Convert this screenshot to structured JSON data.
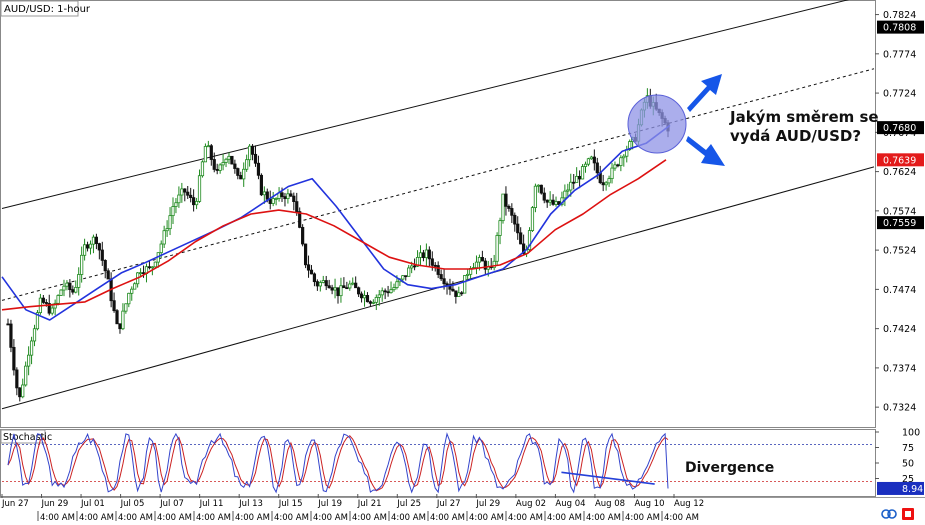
{
  "header": {
    "title": "AUD/USD: 1-hour"
  },
  "annotation": {
    "question": [
      "Jakým směrem se",
      "vydá AUD/USD?"
    ],
    "divergence": "Divergence"
  },
  "colors": {
    "up_candle": "#1f8a1f",
    "down_candle": "#111111",
    "ma_blue": "#2233dd",
    "ma_red": "#dd1111",
    "stoch_main": "#3344cc",
    "stoch_signal": "#cc2222",
    "highlight_fill": "#8f93e6",
    "arrow": "#1656e8",
    "price_tag_black": "#000000",
    "price_tag_red": "#e31b1b"
  },
  "chart_data": [
    {
      "type": "candlestick",
      "title": "AUD/USD: 1-hour",
      "ylim": [
        0.73,
        0.784
      ],
      "y_ticks": [
        "0.7824",
        "0.7774",
        "0.7724",
        "0.7674",
        "0.7624",
        "0.7574",
        "0.7524",
        "0.7474",
        "0.7424",
        "0.7374",
        "0.7324"
      ],
      "price_tags": [
        {
          "value": "0.7808",
          "style": "black"
        },
        {
          "value": "0.7680",
          "style": "black"
        },
        {
          "value": "0.7639",
          "style": "red"
        },
        {
          "value": "0.7559",
          "style": "black"
        }
      ],
      "date_labels": [
        "Jun 27",
        "Jun 29",
        "Jul 01",
        "Jul 05",
        "Jul 07",
        "Jul 11",
        "Jul 13",
        "Jul 15",
        "Jul 19",
        "Jul 21",
        "Jul 25",
        "Jul 27",
        "Jul 29",
        "Aug 02",
        "Aug 04",
        "Aug 08",
        "Aug 10",
        "Aug 12"
      ],
      "time_labels": [
        "4:00 AM",
        "4:00 AM",
        "4:00 AM",
        "4:00 AM",
        "4:00 AM",
        "4:00 AM",
        "4:00 AM",
        "4:00 AM",
        "4:00 AM",
        "4:00 AM",
        "4:00 AM",
        "4:00 AM",
        "4:00 AM",
        "4:00 AM",
        "4:00 AM",
        "4:00 AM",
        "4:00 AM"
      ],
      "price_path": [
        0.743,
        0.733,
        0.7405,
        0.746,
        0.7445,
        0.748,
        0.747,
        0.753,
        0.754,
        0.749,
        0.742,
        0.747,
        0.75,
        0.75,
        0.7535,
        0.758,
        0.76,
        0.758,
        0.766,
        0.762,
        0.765,
        0.761,
        0.766,
        0.76,
        0.7585,
        0.7595,
        0.759,
        0.751,
        0.748,
        0.7485,
        0.747,
        0.748,
        0.747,
        0.746,
        0.747,
        0.7475,
        0.749,
        0.751,
        0.752,
        0.75,
        0.748,
        0.7465,
        0.7505,
        0.751,
        0.7495,
        0.759,
        0.756,
        0.751,
        0.7615,
        0.7585,
        0.758,
        0.7605,
        0.762,
        0.764,
        0.761,
        0.7625,
        0.765,
        0.7665,
        0.772,
        0.77,
        0.768
      ],
      "channel": {
        "upper": [
          [
            0.7577,
            0.7851
          ],
          "channel-upper-line"
        ],
        "middle": [
          [
            0.746,
            0.7755
          ]
        ],
        "lower": [
          [
            0.7322,
            0.763
          ]
        ]
      },
      "ma_blue": [
        0.749,
        0.7448,
        0.7435,
        0.7455,
        0.7475,
        0.7495,
        0.7508,
        0.7522,
        0.7536,
        0.755,
        0.7565,
        0.7585,
        0.7605,
        0.7615,
        0.758,
        0.754,
        0.75,
        0.748,
        0.7475,
        0.748,
        0.749,
        0.75,
        0.7525,
        0.757,
        0.76,
        0.762,
        0.765,
        0.766,
        0.7683
      ],
      "ma_red": [
        0.7448,
        0.7452,
        0.7455,
        0.7458,
        0.7475,
        0.749,
        0.751,
        0.7535,
        0.7555,
        0.757,
        0.7575,
        0.757,
        0.7555,
        0.7535,
        0.7515,
        0.7505,
        0.75,
        0.75,
        0.7505,
        0.752,
        0.755,
        0.757,
        0.7595,
        0.7615,
        0.7639
      ]
    },
    {
      "type": "line",
      "title": "Stochastic",
      "ylim": [
        0,
        100
      ],
      "y_ticks": [
        "100",
        "75",
        "50",
        "25"
      ],
      "levels": [
        80,
        20
      ],
      "current_value": "8.94",
      "divergence_line": [
        [
          0.84,
          35
        ],
        [
          0.98,
          16
        ]
      ]
    }
  ]
}
